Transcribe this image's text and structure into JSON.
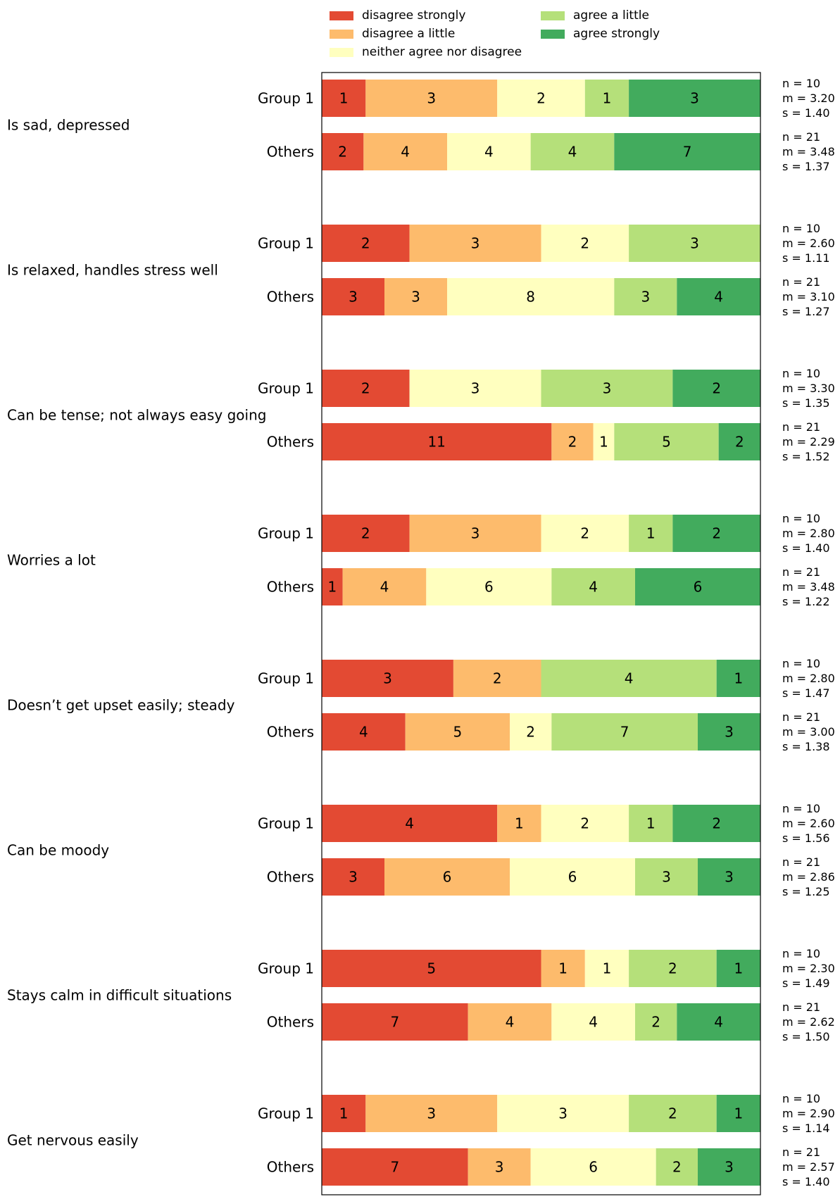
{
  "chart_data": {
    "type": "bar",
    "orientation": "horizontal-stacked-100",
    "categories": [
      "disagree strongly",
      "disagree a little",
      "neither agree nor disagree",
      "agree a little",
      "agree strongly"
    ],
    "colors": [
      "#e34a33",
      "#fdbb6c",
      "#ffffbf",
      "#b5e07a",
      "#42ab5d"
    ],
    "legend_position": "top",
    "groups": [
      "Group 1",
      "Others"
    ],
    "questions": [
      {
        "question": "Is sad, depressed",
        "rows": [
          {
            "group": "Group 1",
            "counts": [
              1,
              3,
              2,
              1,
              3
            ],
            "n": "n = 10",
            "m": "m = 3.20",
            "s": "s = 1.40"
          },
          {
            "group": "Others",
            "counts": [
              2,
              4,
              4,
              4,
              7
            ],
            "n": "n = 21",
            "m": "m = 3.48",
            "s": "s = 1.37"
          }
        ]
      },
      {
        "question": "Is relaxed, handles stress well",
        "rows": [
          {
            "group": "Group 1",
            "counts": [
              2,
              3,
              2,
              3,
              0
            ],
            "n": "n = 10",
            "m": "m = 2.60",
            "s": "s = 1.11"
          },
          {
            "group": "Others",
            "counts": [
              3,
              3,
              8,
              3,
              4
            ],
            "n": "n = 21",
            "m": "m = 3.10",
            "s": "s = 1.27"
          }
        ]
      },
      {
        "question": "Can be tense; not always easy going",
        "rows": [
          {
            "group": "Group 1",
            "counts": [
              2,
              0,
              3,
              3,
              2
            ],
            "n": "n = 10",
            "m": "m = 3.30",
            "s": "s = 1.35"
          },
          {
            "group": "Others",
            "counts": [
              11,
              2,
              1,
              5,
              2
            ],
            "n": "n = 21",
            "m": "m = 2.29",
            "s": "s = 1.52"
          }
        ]
      },
      {
        "question": "Worries a lot",
        "rows": [
          {
            "group": "Group 1",
            "counts": [
              2,
              3,
              2,
              1,
              2
            ],
            "n": "n = 10",
            "m": "m = 2.80",
            "s": "s = 1.40"
          },
          {
            "group": "Others",
            "counts": [
              1,
              4,
              6,
              4,
              6
            ],
            "n": "n = 21",
            "m": "m = 3.48",
            "s": "s = 1.22"
          }
        ]
      },
      {
        "question": "Doesn’t get upset easily; steady",
        "rows": [
          {
            "group": "Group 1",
            "counts": [
              3,
              2,
              0,
              4,
              1
            ],
            "n": "n = 10",
            "m": "m = 2.80",
            "s": "s = 1.47"
          },
          {
            "group": "Others",
            "counts": [
              4,
              5,
              2,
              7,
              3
            ],
            "n": "n = 21",
            "m": "m = 3.00",
            "s": "s = 1.38"
          }
        ]
      },
      {
        "question": "Can be moody",
        "rows": [
          {
            "group": "Group 1",
            "counts": [
              4,
              1,
              2,
              1,
              2
            ],
            "n": "n = 10",
            "m": "m = 2.60",
            "s": "s = 1.56"
          },
          {
            "group": "Others",
            "counts": [
              3,
              6,
              6,
              3,
              3
            ],
            "n": "n = 21",
            "m": "m = 2.86",
            "s": "s = 1.25"
          }
        ]
      },
      {
        "question": "Stays calm in difficult situations",
        "rows": [
          {
            "group": "Group 1",
            "counts": [
              5,
              1,
              1,
              2,
              1
            ],
            "n": "n = 10",
            "m": "m = 2.30",
            "s": "s = 1.49"
          },
          {
            "group": "Others",
            "counts": [
              7,
              4,
              4,
              2,
              4
            ],
            "n": "n = 21",
            "m": "m = 2.62",
            "s": "s = 1.50"
          }
        ]
      },
      {
        "question": "Get nervous easily",
        "rows": [
          {
            "group": "Group 1",
            "counts": [
              1,
              3,
              3,
              2,
              1
            ],
            "n": "n = 10",
            "m": "m = 2.90",
            "s": "s = 1.14"
          },
          {
            "group": "Others",
            "counts": [
              7,
              3,
              6,
              2,
              3
            ],
            "n": "n = 21",
            "m": "m = 2.57",
            "s": "s = 1.40"
          }
        ]
      }
    ]
  }
}
